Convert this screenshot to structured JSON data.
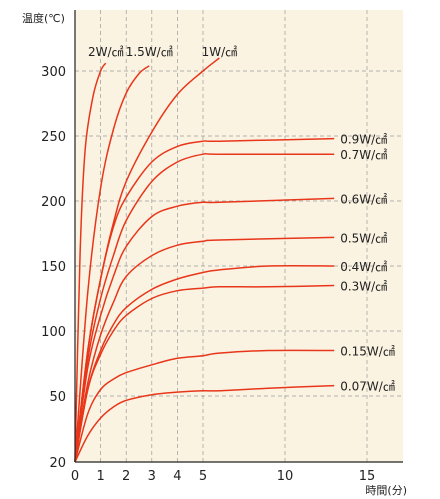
{
  "chart_data": {
    "type": "line",
    "title": "",
    "xlabel": "時間(分)",
    "ylabel": "温度(℃)",
    "xlim": [
      0,
      20
    ],
    "ylim": [
      20,
      330
    ],
    "x_ticks": [
      0,
      1,
      2,
      3,
      4,
      5,
      10,
      15
    ],
    "y_ticks": [
      20,
      50,
      100,
      150,
      200,
      250,
      300
    ],
    "grid": true,
    "series": [
      {
        "name": "2W/㎠",
        "points": [
          [
            0,
            20
          ],
          [
            0.2,
            160
          ],
          [
            0.4,
            240
          ],
          [
            0.7,
            280
          ],
          [
            1,
            300
          ],
          [
            1.2,
            306
          ]
        ]
      },
      {
        "name": "1.5W/㎠",
        "points": [
          [
            0,
            20
          ],
          [
            0.5,
            130
          ],
          [
            1,
            210
          ],
          [
            1.5,
            255
          ],
          [
            2,
            283
          ],
          [
            2.5,
            298
          ],
          [
            2.9,
            304
          ]
        ]
      },
      {
        "name": "1W/㎠",
        "points": [
          [
            0,
            20
          ],
          [
            0.5,
            85
          ],
          [
            1,
            140
          ],
          [
            1.5,
            183
          ],
          [
            2,
            215
          ],
          [
            3,
            253
          ],
          [
            4,
            282
          ],
          [
            5,
            300
          ],
          [
            6,
            310
          ]
        ]
      },
      {
        "name": "0.9W/㎠",
        "points": [
          [
            0,
            20
          ],
          [
            0.5,
            85
          ],
          [
            1,
            140
          ],
          [
            1.5,
            180
          ],
          [
            2,
            203
          ],
          [
            3,
            230
          ],
          [
            4,
            242
          ],
          [
            5,
            246
          ],
          [
            6,
            246
          ],
          [
            13,
            248
          ]
        ]
      },
      {
        "name": "0.7W/㎠",
        "points": [
          [
            0,
            20
          ],
          [
            0.5,
            78
          ],
          [
            1,
            125
          ],
          [
            1.5,
            158
          ],
          [
            2,
            185
          ],
          [
            3,
            215
          ],
          [
            4,
            230
          ],
          [
            5,
            236
          ],
          [
            6,
            236
          ],
          [
            13,
            236
          ]
        ]
      },
      {
        "name": "0.6W/㎠",
        "points": [
          [
            0,
            20
          ],
          [
            0.5,
            72
          ],
          [
            1,
            112
          ],
          [
            1.5,
            142
          ],
          [
            2,
            165
          ],
          [
            3,
            188
          ],
          [
            4,
            196
          ],
          [
            5,
            199
          ],
          [
            6,
            199
          ],
          [
            13,
            202
          ]
        ]
      },
      {
        "name": "0.5W/㎠",
        "points": [
          [
            0,
            20
          ],
          [
            0.5,
            60
          ],
          [
            1,
            97
          ],
          [
            1.5,
            122
          ],
          [
            2,
            142
          ],
          [
            3,
            158
          ],
          [
            4,
            166
          ],
          [
            5,
            169
          ],
          [
            6,
            170
          ],
          [
            13,
            172
          ]
        ]
      },
      {
        "name": "0.4W/㎠",
        "points": [
          [
            0,
            20
          ],
          [
            0.5,
            55
          ],
          [
            1,
            85
          ],
          [
            1.5,
            105
          ],
          [
            2,
            118
          ],
          [
            3,
            132
          ],
          [
            4,
            140
          ],
          [
            5,
            145
          ],
          [
            6,
            147
          ],
          [
            9,
            150
          ],
          [
            13,
            150
          ]
        ]
      },
      {
        "name": "0.3W/㎠",
        "points": [
          [
            0,
            20
          ],
          [
            0.5,
            55
          ],
          [
            1,
            82
          ],
          [
            1.5,
            100
          ],
          [
            2,
            112
          ],
          [
            3,
            125
          ],
          [
            4,
            131
          ],
          [
            5,
            133
          ],
          [
            6,
            134
          ],
          [
            9,
            134
          ],
          [
            13,
            135
          ]
        ]
      },
      {
        "name": "0.15W/㎠",
        "points": [
          [
            0,
            20
          ],
          [
            0.5,
            42
          ],
          [
            1,
            55
          ],
          [
            1.5,
            63
          ],
          [
            2,
            68
          ],
          [
            3,
            74
          ],
          [
            4,
            79
          ],
          [
            5,
            81
          ],
          [
            6,
            83
          ],
          [
            9,
            85
          ],
          [
            13,
            85
          ]
        ]
      },
      {
        "name": "0.07W/㎠",
        "points": [
          [
            0,
            20
          ],
          [
            0.5,
            32
          ],
          [
            1,
            40
          ],
          [
            1.5,
            45
          ],
          [
            2,
            48
          ],
          [
            3,
            51
          ],
          [
            4,
            53
          ],
          [
            5,
            54
          ],
          [
            6,
            54
          ],
          [
            9,
            56
          ],
          [
            13,
            58
          ]
        ]
      }
    ]
  }
}
